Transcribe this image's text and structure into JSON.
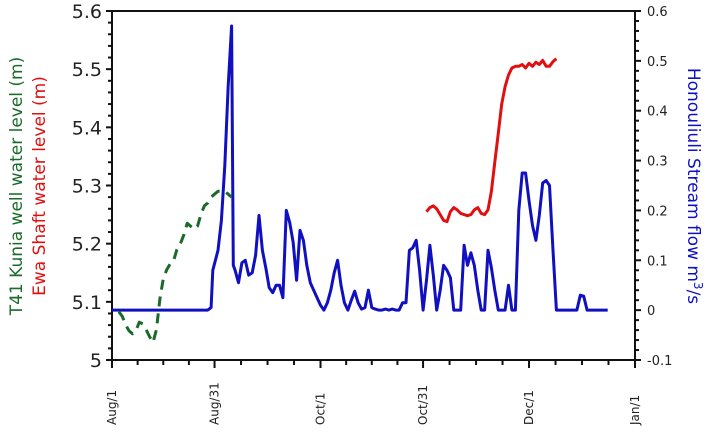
{
  "chart_data": {
    "type": "line",
    "title": "",
    "xlabel": "",
    "x_ticks": [
      "Aug/1",
      "Aug/31",
      "Oct/1",
      "Oct/31",
      "Dec/1",
      "Jan/1"
    ],
    "x_tick_days": [
      0,
      30,
      61,
      91,
      122,
      153
    ],
    "x_range_days": [
      0,
      153
    ],
    "left_axis": {
      "labels": [
        {
          "text": "T41 Kunia well water level (m)",
          "color": "#1a6b2a"
        },
        {
          "text": "Ewa Shaft water level (m)",
          "color": "#e01010"
        }
      ],
      "ylim": [
        5.0,
        5.6
      ],
      "ticks": [
        "5",
        "5.1",
        "5.2",
        "5.3",
        "5.4",
        "5.5",
        "5.6"
      ]
    },
    "right_axis": {
      "label": "Honouliuli Stream flow m³/s",
      "color": "#1010c0",
      "ylim": [
        -0.1,
        0.6
      ],
      "ticks": [
        "-0.1",
        "0",
        "0.1",
        "0.2",
        "0.3",
        "0.4",
        "0.5",
        "0.6"
      ]
    },
    "grid": false,
    "series": [
      {
        "name": "T41 Kunia well water level",
        "axis": "left",
        "color": "#1a6b2a",
        "style": "dashed",
        "points": [
          [
            2,
            5.083
          ],
          [
            3,
            5.075
          ],
          [
            4,
            5.06
          ],
          [
            5,
            5.05
          ],
          [
            6,
            5.045
          ],
          [
            7,
            5.05
          ],
          [
            8,
            5.065
          ],
          [
            9,
            5.062
          ],
          [
            10,
            5.052
          ],
          [
            11,
            5.04
          ],
          [
            12,
            5.03
          ],
          [
            13,
            5.052
          ],
          [
            14,
            5.105
          ],
          [
            15,
            5.14
          ],
          [
            16,
            5.155
          ],
          [
            17,
            5.165
          ],
          [
            18,
            5.17
          ],
          [
            19,
            5.19
          ],
          [
            20,
            5.2
          ],
          [
            21,
            5.215
          ],
          [
            22,
            5.235
          ],
          [
            23,
            5.23
          ],
          [
            24,
            5.225
          ],
          [
            25,
            5.23
          ],
          [
            26,
            5.25
          ],
          [
            27,
            5.265
          ],
          [
            28,
            5.27
          ],
          [
            29,
            5.28
          ],
          [
            30,
            5.285
          ],
          [
            31,
            5.29
          ],
          [
            32,
            5.29
          ],
          [
            33,
            5.29
          ],
          [
            34,
            5.285
          ],
          [
            35,
            5.28
          ]
        ]
      },
      {
        "name": "Ewa Shaft water level",
        "axis": "right-region",
        "color": "#e01010",
        "style": "solid",
        "points": [
          [
            92,
            5.255
          ],
          [
            93,
            5.262
          ],
          [
            94,
            5.265
          ],
          [
            95,
            5.26
          ],
          [
            96,
            5.25
          ],
          [
            97,
            5.24
          ],
          [
            98,
            5.238
          ],
          [
            99,
            5.255
          ],
          [
            100,
            5.262
          ],
          [
            101,
            5.258
          ],
          [
            102,
            5.252
          ],
          [
            103,
            5.25
          ],
          [
            104,
            5.248
          ],
          [
            105,
            5.25
          ],
          [
            106,
            5.258
          ],
          [
            107,
            5.262
          ],
          [
            108,
            5.252
          ],
          [
            109,
            5.25
          ],
          [
            110,
            5.258
          ],
          [
            111,
            5.29
          ],
          [
            112,
            5.34
          ],
          [
            113,
            5.39
          ],
          [
            114,
            5.44
          ],
          [
            115,
            5.47
          ],
          [
            116,
            5.49
          ],
          [
            117,
            5.502
          ],
          [
            118,
            5.505
          ],
          [
            119,
            5.505
          ],
          [
            120,
            5.508
          ],
          [
            121,
            5.502
          ],
          [
            122,
            5.51
          ],
          [
            123,
            5.505
          ],
          [
            124,
            5.512
          ],
          [
            125,
            5.508
          ],
          [
            126,
            5.515
          ],
          [
            127,
            5.505
          ],
          [
            128,
            5.505
          ],
          [
            129,
            5.513
          ],
          [
            130,
            5.518
          ]
        ]
      },
      {
        "name": "Honouliuli Stream flow",
        "axis": "right",
        "color": "#1010c0",
        "style": "solid",
        "points": [
          [
            0,
            0.0
          ],
          [
            28,
            0.0
          ],
          [
            29,
            0.005
          ],
          [
            29.5,
            0.08
          ],
          [
            31,
            0.12
          ],
          [
            32,
            0.18
          ],
          [
            33,
            0.29
          ],
          [
            34,
            0.45
          ],
          [
            35,
            0.57
          ],
          [
            35.5,
            0.09
          ],
          [
            36,
            0.08
          ],
          [
            37,
            0.055
          ],
          [
            38,
            0.095
          ],
          [
            39,
            0.1
          ],
          [
            40,
            0.07
          ],
          [
            41,
            0.075
          ],
          [
            42,
            0.11
          ],
          [
            43,
            0.19
          ],
          [
            44,
            0.12
          ],
          [
            45,
            0.085
          ],
          [
            46,
            0.045
          ],
          [
            47,
            0.035
          ],
          [
            48,
            0.05
          ],
          [
            49,
            0.05
          ],
          [
            50,
            0.025
          ],
          [
            51,
            0.2
          ],
          [
            52,
            0.175
          ],
          [
            53,
            0.135
          ],
          [
            54,
            0.06
          ],
          [
            55,
            0.16
          ],
          [
            56,
            0.14
          ],
          [
            57,
            0.09
          ],
          [
            58,
            0.055
          ],
          [
            59,
            0.04
          ],
          [
            60,
            0.025
          ],
          [
            61,
            0.01
          ],
          [
            62,
            0.0
          ],
          [
            63,
            0.015
          ],
          [
            64,
            0.04
          ],
          [
            65,
            0.075
          ],
          [
            66,
            0.1
          ],
          [
            67,
            0.05
          ],
          [
            68,
            0.015
          ],
          [
            69,
            0.0
          ],
          [
            70,
            0.02
          ],
          [
            71,
            0.038
          ],
          [
            72,
            0.015
          ],
          [
            73,
            0.002
          ],
          [
            74,
            0.005
          ],
          [
            75,
            0.04
          ],
          [
            76,
            0.005
          ],
          [
            77,
            0.002
          ],
          [
            78,
            0.0
          ],
          [
            79,
            0.0
          ],
          [
            80,
            0.002
          ],
          [
            81,
            0.0
          ],
          [
            82,
            0.002
          ],
          [
            83,
            0.0
          ],
          [
            84,
            0.0
          ],
          [
            85,
            0.015
          ],
          [
            86,
            0.015
          ],
          [
            87,
            0.12
          ],
          [
            88,
            0.125
          ],
          [
            89,
            0.14
          ],
          [
            90,
            0.08
          ],
          [
            91,
            0.0
          ],
          [
            92,
            0.06
          ],
          [
            93,
            0.13
          ],
          [
            94,
            0.07
          ],
          [
            95,
            0.0
          ],
          [
            96,
            0.04
          ],
          [
            97,
            0.09
          ],
          [
            98,
            0.08
          ],
          [
            99,
            0.065
          ],
          [
            100,
            0.0
          ],
          [
            101,
            0.0
          ],
          [
            102,
            0.0
          ],
          [
            103,
            0.13
          ],
          [
            104,
            0.09
          ],
          [
            105,
            0.115
          ],
          [
            106,
            0.09
          ],
          [
            107,
            0.04
          ],
          [
            108,
            0.0
          ],
          [
            109,
            0.0
          ],
          [
            110,
            0.12
          ],
          [
            111,
            0.085
          ],
          [
            112,
            0.04
          ],
          [
            113,
            0.0
          ],
          [
            114,
            0.0
          ],
          [
            115,
            0.0
          ],
          [
            116,
            0.05
          ],
          [
            117,
            0.0
          ],
          [
            118,
            0.0
          ],
          [
            119,
            0.2
          ],
          [
            120,
            0.275
          ],
          [
            121,
            0.275
          ],
          [
            122,
            0.22
          ],
          [
            123,
            0.17
          ],
          [
            124,
            0.14
          ],
          [
            125,
            0.19
          ],
          [
            126,
            0.255
          ],
          [
            127,
            0.26
          ],
          [
            128,
            0.25
          ],
          [
            129,
            0.12
          ],
          [
            130,
            0.0
          ],
          [
            131,
            0.0
          ],
          [
            132,
            0.0
          ],
          [
            133,
            0.0
          ],
          [
            134,
            0.0
          ],
          [
            135,
            0.0
          ],
          [
            136,
            0.0
          ],
          [
            137,
            0.03
          ],
          [
            138,
            0.028
          ],
          [
            139,
            0.0
          ],
          [
            140,
            0.0
          ],
          [
            141,
            0.0
          ],
          [
            142,
            0.0
          ],
          [
            143,
            0.0
          ],
          [
            144,
            0.0
          ],
          [
            145,
            0.0
          ]
        ]
      }
    ]
  }
}
